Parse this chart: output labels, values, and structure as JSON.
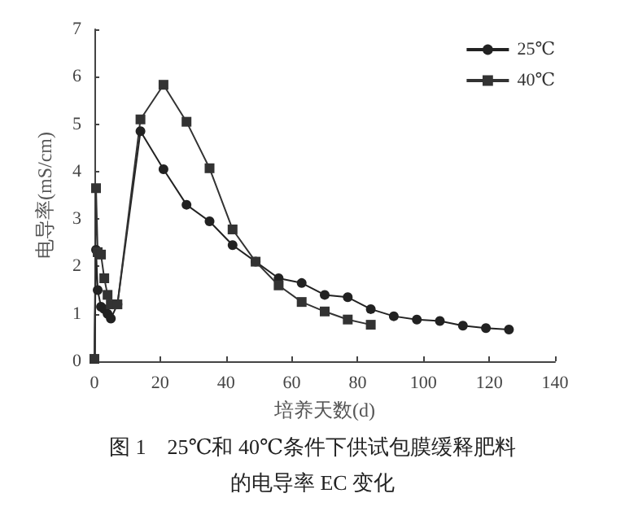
{
  "chart_data": {
    "type": "line",
    "title": "图 1　25℃和 40℃条件下供试包膜缓释肥料的电导率 EC 变化",
    "xlabel": "培养天数(d)",
    "ylabel": "电导率(mS/cm)",
    "xlim": [
      0,
      140
    ],
    "xticks": [
      0,
      20,
      40,
      60,
      80,
      100,
      120,
      140
    ],
    "ylim": [
      0,
      7
    ],
    "yticks": [
      0,
      1,
      2,
      3,
      4,
      5,
      6,
      7
    ],
    "grid": false,
    "legend": "top right",
    "line_style": "solid",
    "series": [
      {
        "name": "25℃",
        "color": "#222222",
        "marker": "circle",
        "x": [
          0,
          0.5,
          1,
          2,
          3,
          4,
          5,
          7,
          14,
          21,
          28,
          35,
          42,
          49,
          56,
          63,
          70,
          77,
          84,
          91,
          98,
          105,
          112,
          119,
          126
        ],
        "values": [
          0.05,
          2.35,
          1.5,
          1.15,
          1.1,
          1.0,
          0.9,
          1.2,
          4.85,
          4.05,
          3.3,
          2.95,
          2.45,
          2.1,
          1.75,
          1.65,
          1.4,
          1.35,
          1.1,
          0.95,
          0.88,
          0.85,
          0.75,
          0.7,
          0.67
        ]
      },
      {
        "name": "40℃",
        "color": "#333333",
        "marker": "square",
        "x": [
          0,
          0.5,
          1,
          2,
          3,
          4,
          5,
          7,
          14,
          21,
          28,
          35,
          42,
          49,
          56,
          63,
          70,
          77,
          84
        ],
        "values": [
          0.05,
          3.65,
          2.3,
          2.25,
          1.75,
          1.4,
          1.2,
          1.2,
          5.1,
          5.83,
          5.05,
          4.07,
          2.78,
          2.1,
          1.6,
          1.25,
          1.05,
          0.88,
          0.77
        ]
      }
    ]
  }
}
